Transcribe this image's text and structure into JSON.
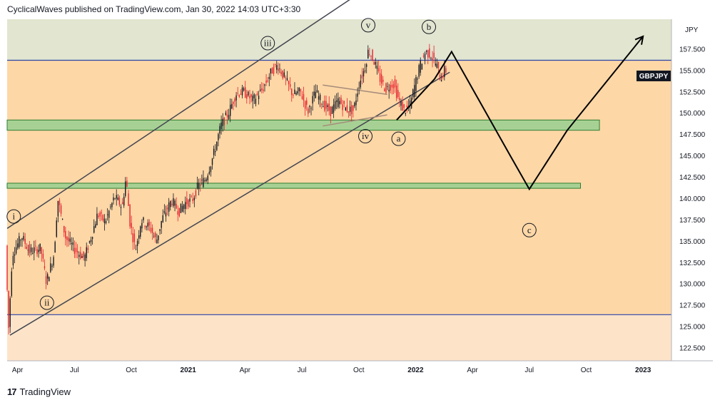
{
  "header": {
    "publish_line": "CyclicalWaves published on TradingView.com, Jan 30, 2022 14:03 UTC+3:30"
  },
  "footer": {
    "brand": "TradingView",
    "logo_glyph": "17"
  },
  "chart_data": {
    "type": "candlestick",
    "symbol_badge": "GBPJPY",
    "currency_label": "JPY",
    "ylim": [
      121.0,
      161.0
    ],
    "y_ticks": [
      122.5,
      125.0,
      127.5,
      130.0,
      132.5,
      135.0,
      137.5,
      140.0,
      142.5,
      145.0,
      147.5,
      150.0,
      152.5,
      155.0,
      157.5
    ],
    "y_tick_labels": [
      "122.500",
      "125.000",
      "127.500",
      "130.000",
      "132.500",
      "135.000",
      "137.500",
      "140.000",
      "142.500",
      "145.000",
      "147.500",
      "150.000",
      "152.500",
      "155.000",
      "157.500"
    ],
    "x_ticks": [
      {
        "label": "Apr",
        "t": 0.0
      },
      {
        "label": "Jul",
        "t": 3.0
      },
      {
        "label": "Oct",
        "t": 6.0
      },
      {
        "label": "2021",
        "t": 9.0,
        "bold": true
      },
      {
        "label": "Apr",
        "t": 12.0
      },
      {
        "label": "Jul",
        "t": 15.0
      },
      {
        "label": "Oct",
        "t": 18.0
      },
      {
        "label": "2022",
        "t": 21.0,
        "bold": true
      },
      {
        "label": "Apr",
        "t": 24.0
      },
      {
        "label": "Jul",
        "t": 27.0
      },
      {
        "label": "Oct",
        "t": 30.0
      },
      {
        "label": "2023",
        "t": 33.0,
        "bold": true
      }
    ],
    "xlim": [
      -0.55,
      34.5
    ],
    "price_path": [
      [
        -0.55,
        134.5
      ],
      [
        -0.4,
        124.5
      ],
      [
        -0.2,
        133.5
      ],
      [
        0.3,
        135.6
      ],
      [
        0.7,
        133.8
      ],
      [
        1.3,
        134.2
      ],
      [
        1.6,
        130.2
      ],
      [
        2.0,
        133.5
      ],
      [
        2.2,
        140.0
      ],
      [
        2.6,
        135.5
      ],
      [
        3.1,
        134.0
      ],
      [
        3.6,
        133.0
      ],
      [
        4.0,
        135.8
      ],
      [
        4.3,
        138.2
      ],
      [
        4.7,
        137.3
      ],
      [
        5.2,
        140.2
      ],
      [
        5.6,
        139.0
      ],
      [
        5.8,
        142.5
      ],
      [
        6.0,
        137.3
      ],
      [
        6.3,
        134.0
      ],
      [
        6.6,
        137.5
      ],
      [
        7.1,
        136.5
      ],
      [
        7.4,
        135.0
      ],
      [
        7.7,
        137.6
      ],
      [
        8.2,
        139.8
      ],
      [
        8.6,
        138.5
      ],
      [
        8.9,
        139.5
      ],
      [
        9.3,
        139.8
      ],
      [
        9.6,
        141.5
      ],
      [
        10.0,
        142.3
      ],
      [
        10.4,
        145.0
      ],
      [
        10.8,
        148.5
      ],
      [
        11.2,
        150.0
      ],
      [
        11.6,
        152.3
      ],
      [
        12.0,
        152.5
      ],
      [
        12.5,
        151.5
      ],
      [
        13.0,
        152.8
      ],
      [
        13.5,
        155.0
      ],
      [
        13.8,
        155.6
      ],
      [
        14.2,
        154.0
      ],
      [
        14.6,
        152.2
      ],
      [
        15.0,
        152.5
      ],
      [
        15.4,
        150.2
      ],
      [
        15.8,
        152.5
      ],
      [
        16.2,
        151.0
      ],
      [
        16.6,
        150.2
      ],
      [
        17.0,
        151.5
      ],
      [
        17.4,
        150.5
      ],
      [
        17.8,
        150.3
      ],
      [
        18.1,
        153.5
      ],
      [
        18.4,
        155.3
      ],
      [
        18.6,
        157.5
      ],
      [
        18.9,
        156.0
      ],
      [
        19.2,
        154.0
      ],
      [
        19.5,
        152.8
      ],
      [
        19.9,
        153.5
      ],
      [
        20.2,
        151.5
      ],
      [
        20.5,
        150.2
      ],
      [
        20.8,
        151.0
      ],
      [
        21.0,
        153.0
      ],
      [
        21.3,
        155.5
      ],
      [
        21.6,
        157.2
      ],
      [
        21.9,
        156.8
      ],
      [
        22.2,
        155.5
      ],
      [
        22.4,
        154.0
      ],
      [
        22.6,
        155.0
      ]
    ],
    "horizontal_lines": [
      {
        "price": 156.2
      },
      {
        "price": 126.4
      }
    ],
    "zones": [
      {
        "top": 149.2,
        "bottom": 148.0,
        "t_end": 30.7
      },
      {
        "top": 141.8,
        "bottom": 141.2,
        "t_end": 29.7
      }
    ],
    "channel": {
      "upper": [
        [
          -0.55,
          136.5
        ],
        [
          18.0,
          164.0
        ]
      ],
      "lower": [
        [
          -0.4,
          124.0
        ],
        [
          22.8,
          154.8
        ]
      ]
    },
    "triangle": {
      "upper": [
        [
          16.1,
          153.3
        ],
        [
          19.5,
          152.2
        ]
      ],
      "lower": [
        [
          16.1,
          148.5
        ],
        [
          19.5,
          149.8
        ]
      ]
    },
    "projection": [
      [
        20.0,
        149.2
      ],
      [
        22.0,
        154.0
      ],
      [
        22.9,
        157.2
      ],
      [
        26.0,
        145.0
      ],
      [
        27.0,
        141.1
      ],
      [
        29.0,
        148.0
      ],
      [
        33.0,
        159.0
      ]
    ],
    "wave_labels": [
      {
        "text": "i",
        "t": -0.2,
        "price": 137.9
      },
      {
        "text": "ii",
        "t": 1.55,
        "price": 127.8
      },
      {
        "text": "iii",
        "t": 13.2,
        "price": 158.2
      },
      {
        "text": "iv",
        "t": 18.35,
        "price": 147.3
      },
      {
        "text": "v",
        "t": 18.5,
        "price": 160.3
      },
      {
        "text": "a",
        "t": 20.1,
        "price": 147.0
      },
      {
        "text": "b",
        "t": 21.7,
        "price": 160.1
      },
      {
        "text": "c",
        "t": 27.0,
        "price": 136.3
      }
    ],
    "colors": {
      "top_band": "#e2e5cf",
      "mid_band": "#fdd7a6",
      "low_band": "#fde4c9",
      "zone_fill": "#a7d194",
      "zone_border": "#2e7d32",
      "hline": "#2945a8",
      "channel": "#434651",
      "triangle": "#a58b7a",
      "projection": "#000000",
      "candle_up": "#131722",
      "candle_down": "#e5212e",
      "badge_bg": "#131722",
      "badge_fg": "#ffffff"
    }
  }
}
